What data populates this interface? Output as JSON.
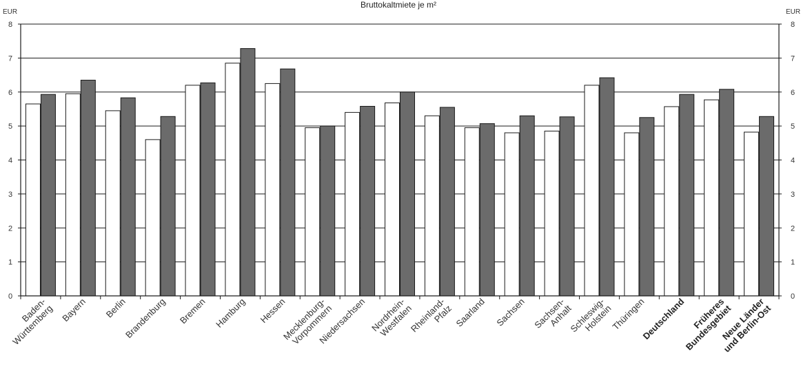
{
  "chart_data": {
    "type": "bar",
    "title": "Bruttokaltmiete je m²",
    "ylabel_left": "EUR",
    "ylabel_right": "EUR",
    "ylim": [
      0,
      8
    ],
    "yticks": [
      "0",
      "1",
      "2",
      "3",
      "4",
      "5",
      "6",
      "7",
      "8"
    ],
    "grid": true,
    "categories": [
      {
        "lines": [
          "Baden-",
          "Württemberg"
        ],
        "bold": false
      },
      {
        "lines": [
          "Bayern"
        ],
        "bold": false
      },
      {
        "lines": [
          "Berlin"
        ],
        "bold": false
      },
      {
        "lines": [
          "Brandenburg"
        ],
        "bold": false
      },
      {
        "lines": [
          "Bremen"
        ],
        "bold": false
      },
      {
        "lines": [
          "Hamburg"
        ],
        "bold": false
      },
      {
        "lines": [
          "Hessen"
        ],
        "bold": false
      },
      {
        "lines": [
          "Mecklenburg-",
          "Vorpommern"
        ],
        "bold": false
      },
      {
        "lines": [
          "Niedersachsen"
        ],
        "bold": false
      },
      {
        "lines": [
          "Nordrhein-",
          "Westfalen"
        ],
        "bold": false
      },
      {
        "lines": [
          "Rheinland-",
          "Pfalz"
        ],
        "bold": false
      },
      {
        "lines": [
          "Saarland"
        ],
        "bold": false
      },
      {
        "lines": [
          "Sachsen"
        ],
        "bold": false
      },
      {
        "lines": [
          "Sachsen-",
          "Anhalt"
        ],
        "bold": false
      },
      {
        "lines": [
          "Schleswig-",
          "Holstein"
        ],
        "bold": false
      },
      {
        "lines": [
          "Thüringen"
        ],
        "bold": false
      },
      {
        "lines": [
          "Deutschland"
        ],
        "bold": true
      },
      {
        "lines": [
          "Früheres",
          "Bundesgebiet"
        ],
        "bold": true
      },
      {
        "lines": [
          "Neue Länder",
          "und Berlin-Ost"
        ],
        "bold": true
      }
    ],
    "series": [
      {
        "fill": "#ffffff",
        "values": [
          5.65,
          5.95,
          5.45,
          4.6,
          6.2,
          6.85,
          6.25,
          4.95,
          5.4,
          5.68,
          5.3,
          4.95,
          4.8,
          4.85,
          6.2,
          4.8,
          5.57,
          5.77,
          4.82
        ]
      },
      {
        "fill": "#6b6b6b",
        "values": [
          5.93,
          6.35,
          5.83,
          5.28,
          6.27,
          7.28,
          6.68,
          5.0,
          5.58,
          6.0,
          5.55,
          5.07,
          5.3,
          5.27,
          6.42,
          5.25,
          5.93,
          6.08,
          5.28
        ]
      }
    ]
  }
}
